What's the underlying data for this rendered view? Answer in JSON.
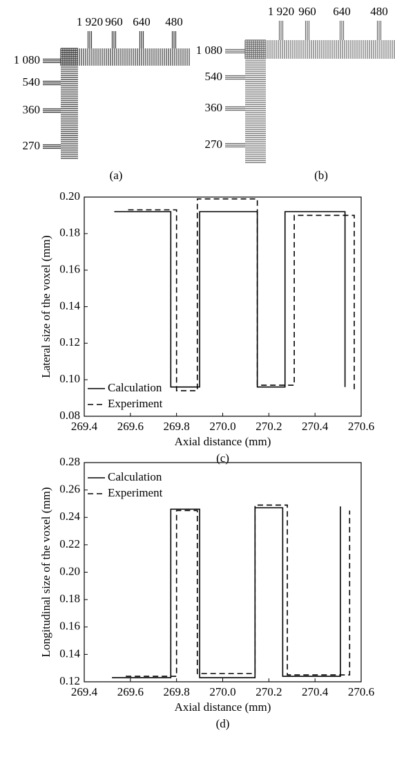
{
  "panels": [
    {
      "caption": "(a)",
      "top_labels": [
        "1 920",
        "960",
        "640",
        "480"
      ],
      "left_labels": [
        "1 080",
        "540",
        "360",
        "270"
      ]
    },
    {
      "caption": "(b)",
      "top_labels": [
        "1 920",
        "960",
        "640",
        "480"
      ],
      "left_labels": [
        "1 080",
        "540",
        "360",
        "270"
      ]
    }
  ],
  "chart_data": [
    {
      "type": "line",
      "caption": "(c)",
      "xlabel": "Axial distance (mm)",
      "ylabel": "Lateral size of the voxel (mm)",
      "xlim": [
        269.4,
        270.6
      ],
      "xticks": [
        269.4,
        269.6,
        269.8,
        {
          "value": 270.0,
          "label": "270.0"
        },
        270.2,
        270.4,
        270.6
      ],
      "ylim": [
        0.08,
        0.2
      ],
      "yticks": [
        0.08,
        {
          "value": 0.1,
          "label": "0.10"
        },
        0.12,
        0.14,
        0.16,
        0.18,
        {
          "value": 0.2,
          "label": "0.20"
        }
      ],
      "legend": "lower left",
      "series": [
        {
          "name": "Calculation",
          "color": "#000000",
          "linestyle": "solid",
          "x": [
            269.53,
            269.775,
            269.775,
            269.9,
            269.9,
            270.15,
            270.15,
            270.27,
            270.27,
            270.53,
            270.53
          ],
          "values": [
            0.192,
            0.192,
            0.096,
            0.096,
            0.192,
            0.192,
            0.096,
            0.096,
            0.192,
            0.192,
            0.096
          ]
        },
        {
          "name": "Experiment",
          "color": "#000000",
          "linestyle": "dashed",
          "x": [
            269.59,
            269.8,
            269.8,
            269.89,
            269.89,
            270.15,
            270.15,
            270.31,
            270.31,
            270.57,
            270.57
          ],
          "values": [
            0.193,
            0.193,
            0.094,
            0.094,
            0.199,
            0.199,
            0.097,
            0.097,
            0.19,
            0.19,
            0.094
          ]
        }
      ]
    },
    {
      "type": "line",
      "caption": "(d)",
      "xlabel": "Axial distance (mm)",
      "ylabel": "Longitudinal size of the voxel (mm)",
      "xlim": [
        269.4,
        270.6
      ],
      "xticks": [
        269.4,
        269.6,
        269.8,
        {
          "value": 270.0,
          "label": "270.0"
        },
        270.2,
        270.4,
        270.6
      ],
      "ylim": [
        0.12,
        0.28
      ],
      "yticks": [
        0.12,
        0.14,
        0.16,
        0.18,
        {
          "value": 0.2,
          "label": "0.20"
        },
        0.22,
        0.24,
        0.26,
        0.28
      ],
      "legend": "upper left",
      "series": [
        {
          "name": "Calculation",
          "color": "#000000",
          "linestyle": "solid",
          "x": [
            269.52,
            269.775,
            269.775,
            269.9,
            269.9,
            270.14,
            270.14,
            270.26,
            270.26,
            270.51,
            270.51
          ],
          "values": [
            0.123,
            0.123,
            0.246,
            0.246,
            0.123,
            0.123,
            0.247,
            0.247,
            0.124,
            0.124,
            0.248
          ]
        },
        {
          "name": "Experiment",
          "color": "#000000",
          "linestyle": "dashed",
          "x": [
            269.58,
            269.8,
            269.8,
            269.89,
            269.89,
            270.14,
            270.14,
            270.28,
            270.28,
            270.55,
            270.55
          ],
          "values": [
            0.124,
            0.124,
            0.245,
            0.245,
            0.126,
            0.126,
            0.249,
            0.249,
            0.125,
            0.125,
            0.245
          ]
        }
      ]
    }
  ]
}
